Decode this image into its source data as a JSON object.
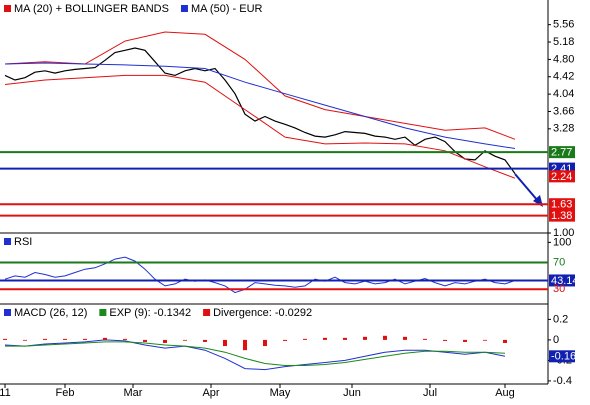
{
  "chart_data": [
    {
      "type": "line",
      "xlim": [
        -0.5,
        54.3
      ],
      "ylim": [
        1,
        6.1
      ],
      "yticks": [
        {
          "value": 1,
          "label": "1.00"
        },
        {
          "value": 3.28,
          "label": "3.28"
        },
        {
          "value": 3.66,
          "label": "3.66"
        },
        {
          "value": 4.04,
          "label": "4.04"
        },
        {
          "value": 4.42,
          "label": "4.42"
        },
        {
          "value": 4.8,
          "label": "4.80"
        },
        {
          "value": 5.18,
          "label": "5.18"
        },
        {
          "value": 5.56,
          "label": "5.56"
        }
      ],
      "price": {
        "color": "#000000",
        "x": [
          0,
          1,
          2,
          3,
          4,
          5,
          6,
          7,
          8,
          9,
          10,
          11,
          12,
          13,
          14,
          15,
          16,
          17,
          18,
          19,
          20,
          21,
          22,
          23,
          24,
          25,
          26,
          27,
          28,
          29,
          30,
          31,
          32,
          33,
          34,
          35,
          36,
          37,
          38,
          39,
          40,
          41,
          42,
          43,
          44,
          45,
          46,
          47,
          48,
          49,
          50,
          51
        ],
        "values": [
          4.45,
          4.35,
          4.4,
          4.52,
          4.55,
          4.5,
          4.55,
          4.58,
          4.6,
          4.62,
          4.78,
          4.95,
          5.0,
          5.05,
          5.0,
          4.75,
          4.5,
          4.45,
          4.55,
          4.6,
          4.55,
          4.6,
          4.35,
          4.05,
          3.6,
          3.45,
          3.55,
          3.45,
          3.38,
          3.3,
          3.2,
          3.12,
          3.1,
          3.15,
          3.22,
          3.2,
          3.18,
          3.12,
          3.1,
          3.05,
          3.1,
          2.92,
          3.05,
          3.1,
          3.0,
          2.78,
          2.62,
          2.6,
          2.8,
          2.68,
          2.6,
          2.3
        ]
      },
      "series": [
        {
          "name": "MA (20) + BOLLINGER BANDS",
          "color": "#e01010",
          "x": [
            0,
            4,
            8,
            12,
            16,
            20,
            24,
            28,
            32,
            36,
            40,
            44,
            48,
            51
          ],
          "upper": [
            4.7,
            4.75,
            4.7,
            5.2,
            5.4,
            5.35,
            4.8,
            4.0,
            3.7,
            3.55,
            3.4,
            3.25,
            3.3,
            3.05
          ],
          "lower": [
            4.25,
            4.35,
            4.4,
            4.45,
            4.45,
            4.3,
            3.7,
            3.1,
            2.95,
            2.97,
            2.95,
            2.8,
            2.45,
            2.2
          ]
        },
        {
          "name": "MA (50) - EUR",
          "color": "#2030d0",
          "x": [
            0,
            4,
            8,
            12,
            16,
            20,
            24,
            28,
            32,
            36,
            40,
            44,
            48,
            51
          ],
          "values": [
            4.7,
            4.72,
            4.7,
            4.68,
            4.65,
            4.6,
            4.3,
            4.05,
            3.8,
            3.55,
            3.3,
            3.1,
            2.95,
            2.85
          ]
        }
      ],
      "levels": [
        {
          "value": 2.77,
          "color": "#1a7a1a",
          "line": true,
          "box": true
        },
        {
          "value": 2.41,
          "color": "#1020b0",
          "line": true,
          "box": true
        },
        {
          "value": 2.24,
          "color": "#e01010",
          "line": false,
          "box": true
        },
        {
          "value": 1.63,
          "color": "#e01010",
          "line": true,
          "box": true
        },
        {
          "value": 1.38,
          "color": "#e01010",
          "line": true,
          "box": true
        }
      ]
    },
    {
      "type": "line",
      "xlim": [
        -0.5,
        54.3
      ],
      "ylim": [
        8,
        114
      ],
      "yticks": [
        100
      ],
      "series": [
        {
          "name": "RSI",
          "color": "#2030d0",
          "x": [
            0,
            1,
            2,
            3,
            4,
            5,
            6,
            7,
            8,
            9,
            10,
            11,
            12,
            13,
            14,
            15,
            16,
            17,
            18,
            19,
            20,
            21,
            22,
            23,
            24,
            25,
            26,
            27,
            28,
            29,
            30,
            31,
            32,
            33,
            34,
            35,
            36,
            37,
            38,
            39,
            40,
            41,
            42,
            43,
            44,
            45,
            46,
            47,
            48,
            49,
            50,
            51
          ],
          "values": [
            45,
            50,
            48,
            55,
            52,
            48,
            50,
            55,
            60,
            62,
            68,
            75,
            78,
            72,
            60,
            45,
            35,
            38,
            45,
            42,
            44,
            40,
            35,
            25,
            30,
            40,
            38,
            36,
            35,
            33,
            35,
            45,
            42,
            48,
            40,
            38,
            42,
            38,
            40,
            45,
            38,
            42,
            46,
            40,
            35,
            40,
            38,
            42,
            45,
            40,
            38,
            43.14
          ]
        }
      ],
      "levels": [
        {
          "value": 70,
          "color": "#1a7a1a",
          "line": true,
          "box": false
        },
        {
          "value": 43.14,
          "color": "#1020b0",
          "line": true,
          "box": true
        },
        {
          "value": 30,
          "color": "#e01010",
          "line": true,
          "box": false
        }
      ]
    },
    {
      "type": "line",
      "xlim": [
        -0.5,
        54.3
      ],
      "ylim": [
        -0.43,
        0.35
      ],
      "yticks": [
        0.2,
        0,
        -0.2,
        -0.4
      ],
      "xticks": [
        {
          "value": 0,
          "label": "11"
        },
        {
          "value": 6,
          "label": "Feb"
        },
        {
          "value": 12.8,
          "label": "Mar"
        },
        {
          "value": 20.6,
          "label": "Apr"
        },
        {
          "value": 27.5,
          "label": "May"
        },
        {
          "value": 34.7,
          "label": "Jun"
        },
        {
          "value": 42.5,
          "label": "Jul"
        },
        {
          "value": 50,
          "label": "Aug"
        }
      ],
      "series": [
        {
          "name": "MACD (26, 12)",
          "color": "#2030d0",
          "x": [
            0,
            2,
            4,
            6,
            8,
            10,
            12,
            14,
            16,
            18,
            20,
            22,
            24,
            26,
            28,
            30,
            32,
            34,
            36,
            38,
            40,
            42,
            44,
            46,
            48,
            50
          ],
          "values": [
            -0.05,
            -0.06,
            -0.04,
            -0.03,
            -0.02,
            0,
            -0.01,
            -0.05,
            -0.08,
            -0.06,
            -0.1,
            -0.18,
            -0.28,
            -0.29,
            -0.26,
            -0.24,
            -0.22,
            -0.2,
            -0.16,
            -0.12,
            -0.1,
            -0.1,
            -0.12,
            -0.14,
            -0.12,
            -0.16
          ]
        },
        {
          "name": "EXP (9): -0.1342",
          "color": "#1a8a1a",
          "x": [
            0,
            2,
            4,
            6,
            8,
            10,
            12,
            14,
            16,
            18,
            20,
            22,
            24,
            26,
            28,
            30,
            32,
            34,
            36,
            38,
            40,
            42,
            44,
            46,
            48,
            50
          ],
          "values": [
            -0.06,
            -0.06,
            -0.05,
            -0.04,
            -0.03,
            -0.02,
            -0.02,
            -0.03,
            -0.05,
            -0.06,
            -0.08,
            -0.12,
            -0.18,
            -0.23,
            -0.25,
            -0.25,
            -0.24,
            -0.22,
            -0.19,
            -0.16,
            -0.13,
            -0.11,
            -0.11,
            -0.12,
            -0.12,
            -0.13
          ]
        },
        {
          "name": "Divergence: -0.0292",
          "color": "#e01010",
          "bars": true,
          "x": [
            0,
            2,
            4,
            6,
            8,
            10,
            12,
            14,
            16,
            18,
            20,
            22,
            24,
            26,
            28,
            30,
            32,
            34,
            36,
            38,
            40,
            42,
            44,
            46,
            48,
            50
          ],
          "values": [
            0.01,
            0,
            0.01,
            0.01,
            0.01,
            0.02,
            0.01,
            -0.02,
            -0.03,
            0,
            -0.02,
            -0.06,
            -0.1,
            -0.06,
            -0.01,
            0.01,
            0.02,
            0.02,
            0.03,
            0.04,
            0.03,
            0.01,
            -0.01,
            -0.02,
            0,
            -0.03
          ]
        }
      ],
      "levels": [
        {
          "value": -0.16,
          "color": "#1020b0",
          "line": false,
          "box": true
        }
      ]
    }
  ]
}
